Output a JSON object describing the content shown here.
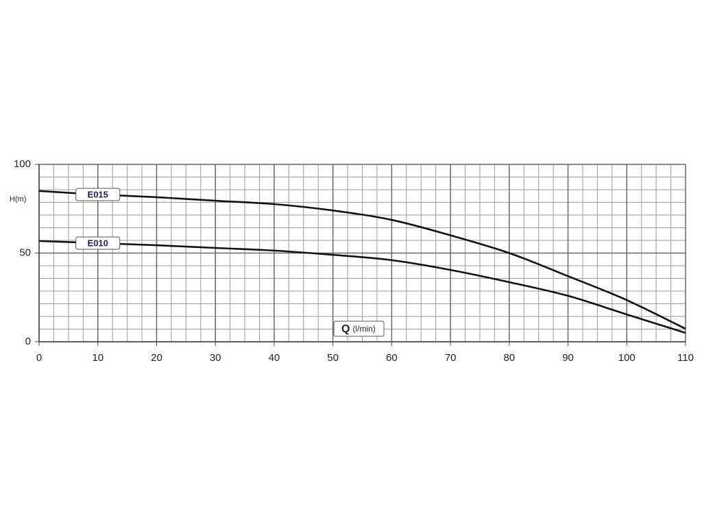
{
  "chart_data": {
    "type": "line",
    "y_label": "H(m)",
    "x_label": "Q",
    "x_unit": "(l/min)",
    "x": [
      0,
      10,
      20,
      30,
      40,
      50,
      60,
      70,
      80,
      90,
      100,
      110
    ],
    "series": [
      {
        "name": "E015",
        "color": "#111111",
        "values": [
          85,
          83,
          81.5,
          79.5,
          77.6,
          74,
          68.7,
          60,
          50,
          37,
          23.5,
          7.3
        ]
      },
      {
        "name": "E010",
        "color": "#111111",
        "values": [
          56.8,
          55.6,
          54.4,
          52.9,
          51.4,
          49,
          46,
          40.5,
          33.6,
          25.9,
          15.4,
          5
        ]
      }
    ],
    "xlim": [
      0,
      110
    ],
    "ylim": [
      0,
      100
    ],
    "xticks": [
      0,
      10,
      20,
      30,
      40,
      50,
      60,
      70,
      80,
      90,
      100,
      110
    ],
    "yticks": [
      0,
      50,
      100
    ],
    "grid": true,
    "minor_divisions": [
      4,
      7
    ],
    "label_color": "#1a1a6e"
  }
}
